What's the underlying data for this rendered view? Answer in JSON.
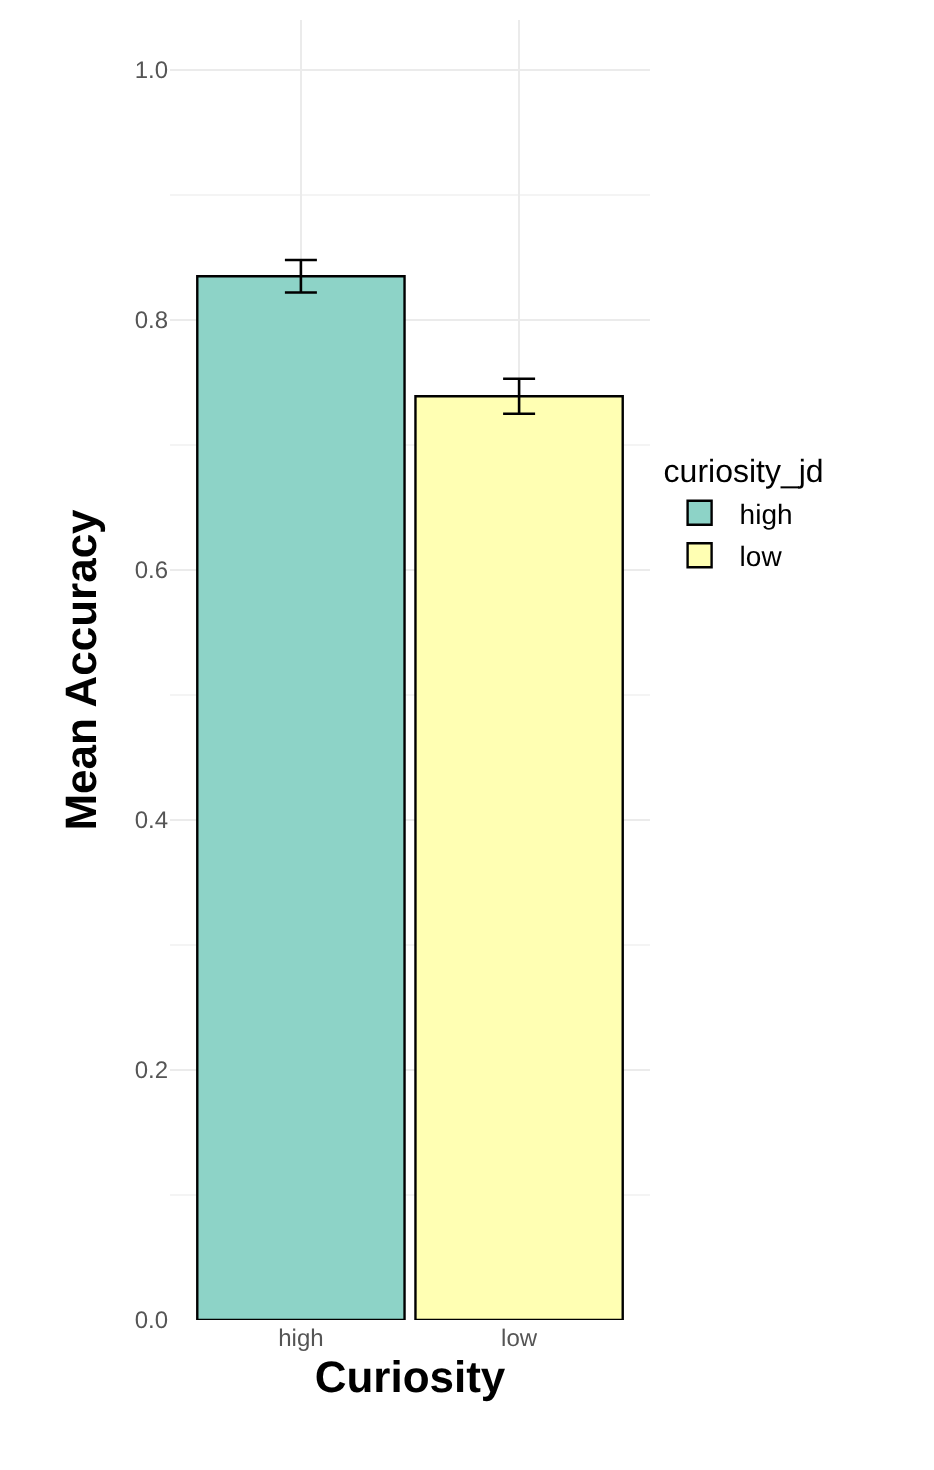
{
  "chart_data": {
    "type": "bar",
    "categories": [
      "high",
      "low"
    ],
    "series": [
      {
        "name": "high",
        "color": "#8dd3c7",
        "values": [
          0.835,
          null
        ],
        "errors": [
          0.013,
          null
        ]
      },
      {
        "name": "low",
        "color": "#ffffb3",
        "values": [
          null,
          0.739
        ],
        "errors": [
          null,
          0.014
        ]
      }
    ],
    "xlabel": "Curiosity",
    "ylabel": "Mean Accuracy",
    "legend_title": "curiosity_jd",
    "ylim": [
      0,
      1.04
    ],
    "yticks": [
      {
        "value": 0,
        "label": "0.0"
      },
      {
        "value": 0.2,
        "label": "0.2"
      },
      {
        "value": 0.4,
        "label": "0.4"
      },
      {
        "value": 0.6,
        "label": "0.6"
      },
      {
        "value": 0.8,
        "label": "0.8"
      },
      {
        "value": 1,
        "label": "1.0"
      }
    ],
    "grid": true,
    "legend": "right"
  }
}
